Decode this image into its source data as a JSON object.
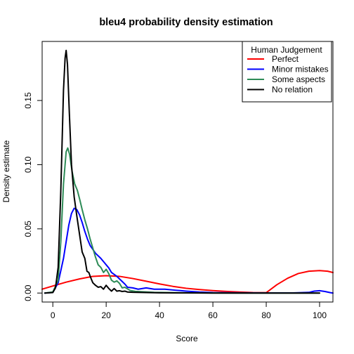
{
  "chart_data": {
    "type": "line",
    "title": "bleu4  probability density estimation",
    "xlabel": "Score",
    "ylabel": "Density estimate",
    "xlim": [
      -4,
      105
    ],
    "ylim": [
      -0.007,
      0.196
    ],
    "x_ticks": [
      0,
      20,
      40,
      60,
      80,
      100
    ],
    "y_ticks": [
      0.0,
      0.05,
      0.1,
      0.15
    ],
    "y_tick_labels": [
      "0.00",
      "0.05",
      "0.10",
      "0.15"
    ],
    "grid": false,
    "legend": {
      "title": "Human Judgement",
      "position": "top-right"
    },
    "series": [
      {
        "name": "Perfect",
        "color": "#ff0000",
        "points": [
          [
            -4,
            0.003
          ],
          [
            0,
            0.0055
          ],
          [
            5,
            0.0085
          ],
          [
            10,
            0.011
          ],
          [
            15,
            0.013
          ],
          [
            20,
            0.0135
          ],
          [
            25,
            0.013
          ],
          [
            30,
            0.0113
          ],
          [
            35,
            0.0092
          ],
          [
            40,
            0.0071
          ],
          [
            45,
            0.0052
          ],
          [
            50,
            0.0037
          ],
          [
            55,
            0.0027
          ],
          [
            60,
            0.0019
          ],
          [
            65,
            0.0013
          ],
          [
            70,
            0.0008
          ],
          [
            75,
            0.0004
          ],
          [
            80,
            0.0003
          ],
          [
            84,
            0.0065
          ],
          [
            88,
            0.0115
          ],
          [
            92,
            0.0152
          ],
          [
            96,
            0.017
          ],
          [
            100,
            0.0175
          ],
          [
            103,
            0.017
          ],
          [
            105,
            0.016
          ]
        ]
      },
      {
        "name": "Minor mistakes",
        "color": "#0000ff",
        "points": [
          [
            -3,
            0.0
          ],
          [
            0,
            0.0005
          ],
          [
            2,
            0.008
          ],
          [
            4,
            0.027
          ],
          [
            5,
            0.04
          ],
          [
            6,
            0.053
          ],
          [
            7,
            0.062
          ],
          [
            8,
            0.066
          ],
          [
            9,
            0.065
          ],
          [
            10,
            0.061
          ],
          [
            11,
            0.055
          ],
          [
            12,
            0.048
          ],
          [
            13,
            0.042
          ],
          [
            14,
            0.037
          ],
          [
            15,
            0.034
          ],
          [
            16,
            0.031
          ],
          [
            18,
            0.027
          ],
          [
            20,
            0.022
          ],
          [
            21,
            0.0195
          ],
          [
            22,
            0.016
          ],
          [
            23,
            0.0145
          ],
          [
            24,
            0.013
          ],
          [
            25,
            0.011
          ],
          [
            26,
            0.009
          ],
          [
            27,
            0.007
          ],
          [
            28,
            0.0045
          ],
          [
            30,
            0.004
          ],
          [
            32,
            0.003
          ],
          [
            35,
            0.004
          ],
          [
            38,
            0.003
          ],
          [
            42,
            0.003
          ],
          [
            46,
            0.0022
          ],
          [
            50,
            0.0015
          ],
          [
            55,
            0.0008
          ],
          [
            60,
            0.0004
          ],
          [
            70,
            0.0002
          ],
          [
            80,
            0.0001
          ],
          [
            90,
            0.0001
          ],
          [
            96,
            0.0005
          ],
          [
            98,
            0.0015
          ],
          [
            100,
            0.0018
          ],
          [
            102,
            0.0012
          ],
          [
            104,
            0.0003
          ],
          [
            105,
            0.0
          ]
        ]
      },
      {
        "name": "Some aspects",
        "color": "#2e8b57",
        "points": [
          [
            -3,
            0.0
          ],
          [
            0,
            0.0008
          ],
          [
            2,
            0.01
          ],
          [
            3,
            0.04
          ],
          [
            4,
            0.085
          ],
          [
            5,
            0.11
          ],
          [
            5.6,
            0.113
          ],
          [
            6.3,
            0.108
          ],
          [
            7.2,
            0.095
          ],
          [
            8.2,
            0.085
          ],
          [
            9.2,
            0.08
          ],
          [
            10.2,
            0.072
          ],
          [
            11,
            0.065
          ],
          [
            12,
            0.057
          ],
          [
            13,
            0.05
          ],
          [
            14,
            0.042
          ],
          [
            15,
            0.035
          ],
          [
            16,
            0.028
          ],
          [
            17,
            0.022
          ],
          [
            18,
            0.02
          ],
          [
            19,
            0.016
          ],
          [
            20,
            0.0185
          ],
          [
            21,
            0.015
          ],
          [
            22,
            0.01
          ],
          [
            23,
            0.0085
          ],
          [
            24,
            0.0095
          ],
          [
            25,
            0.0075
          ],
          [
            26,
            0.004
          ],
          [
            27,
            0.0045
          ],
          [
            29,
            0.002
          ],
          [
            31,
            0.0013
          ],
          [
            34,
            0.0009
          ],
          [
            38,
            0.0005
          ],
          [
            45,
            0.0003
          ],
          [
            55,
            0.0001
          ],
          [
            70,
            0.0
          ],
          [
            100,
            0.0
          ]
        ]
      },
      {
        "name": "No relation",
        "color": "#000000",
        "points": [
          [
            -3,
            0.0
          ],
          [
            0,
            0.0004
          ],
          [
            1,
            0.004
          ],
          [
            2,
            0.02
          ],
          [
            3,
            0.08
          ],
          [
            4,
            0.158
          ],
          [
            4.6,
            0.183
          ],
          [
            5,
            0.189
          ],
          [
            5.5,
            0.178
          ],
          [
            6.2,
            0.14
          ],
          [
            7,
            0.1
          ],
          [
            8,
            0.075
          ],
          [
            9,
            0.06
          ],
          [
            10,
            0.046
          ],
          [
            11,
            0.032
          ],
          [
            12,
            0.027
          ],
          [
            12.8,
            0.017
          ],
          [
            13.5,
            0.016
          ],
          [
            14.2,
            0.012
          ],
          [
            15,
            0.008
          ],
          [
            16,
            0.006
          ],
          [
            17,
            0.0045
          ],
          [
            18,
            0.005
          ],
          [
            19,
            0.003
          ],
          [
            20,
            0.006
          ],
          [
            21,
            0.0035
          ],
          [
            22,
            0.0015
          ],
          [
            23,
            0.0035
          ],
          [
            24,
            0.0015
          ],
          [
            25,
            0.0018
          ],
          [
            26,
            0.0012
          ],
          [
            27,
            0.0015
          ],
          [
            28,
            0.0008
          ],
          [
            30,
            0.0006
          ],
          [
            35,
            0.0004
          ],
          [
            40,
            0.0002
          ],
          [
            50,
            0.0001
          ],
          [
            60,
            0.0
          ],
          [
            100,
            0.0
          ]
        ]
      }
    ]
  }
}
